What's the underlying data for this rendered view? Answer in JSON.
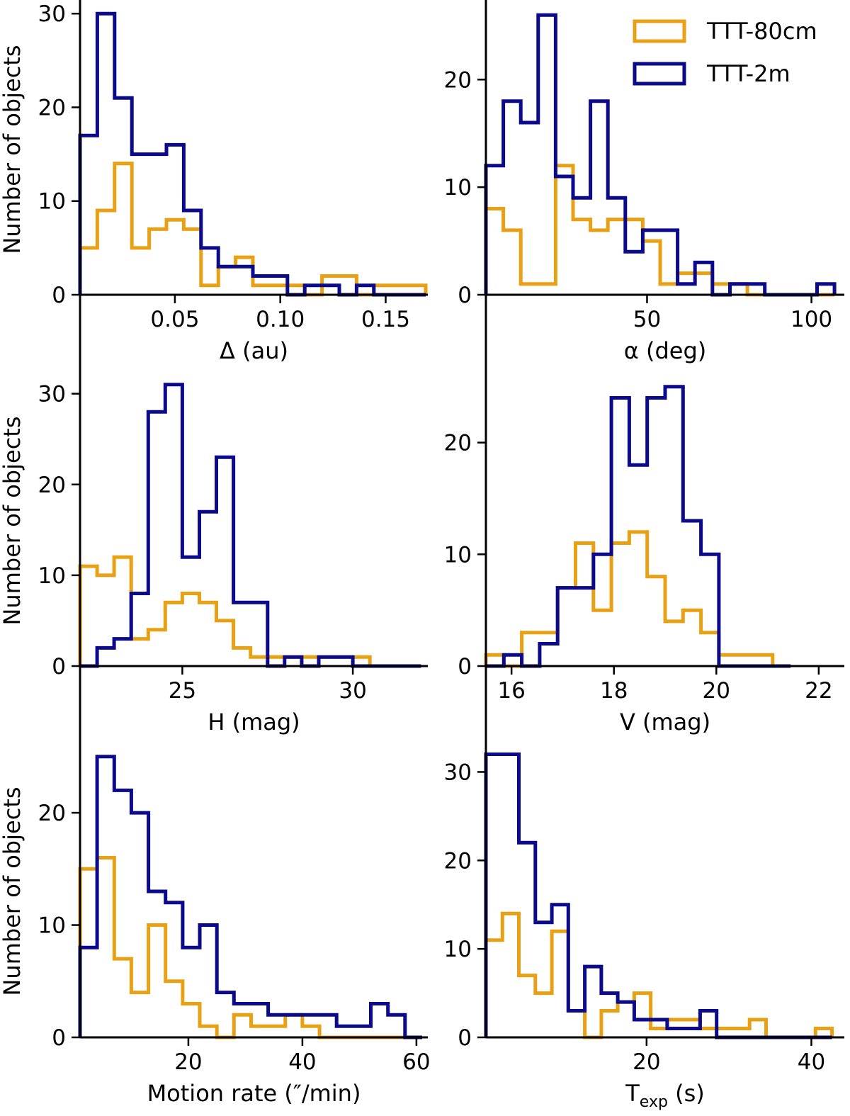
{
  "colors": {
    "ttt80": "#E8A015",
    "ttt2": "#0A0A8A",
    "axis": "#000000"
  },
  "legend": {
    "entries": [
      "TTT-80cm",
      "TTT-2m"
    ]
  },
  "chart_data": [
    {
      "type": "histogram",
      "panel": "delta",
      "xlabel": "Δ (au)",
      "ylabel": "Number of objects",
      "xlim": [
        0.005,
        0.17
      ],
      "ylim": [
        0,
        31
      ],
      "xticks": [
        0.05,
        0.1,
        0.15
      ],
      "xtick_labels": [
        "0.05",
        "0.10",
        "0.15"
      ],
      "yticks": [
        0,
        10,
        20,
        30
      ],
      "ytick_labels": [
        "0",
        "10",
        "20",
        "30"
      ],
      "edges": [
        0.005,
        0.0132,
        0.0214,
        0.0296,
        0.0378,
        0.046,
        0.0542,
        0.0624,
        0.0706,
        0.0788,
        0.087,
        0.0952,
        0.1034,
        0.1116,
        0.1198,
        0.128,
        0.1362,
        0.1444,
        0.1526,
        0.1608,
        0.169
      ],
      "series": [
        {
          "name": "TTT-80cm",
          "values": [
            5,
            9,
            14,
            5,
            7,
            8,
            7,
            1,
            3,
            4,
            1,
            1,
            1,
            0,
            2,
            2,
            0,
            1,
            1,
            1
          ]
        },
        {
          "name": "TTT-2m",
          "values": [
            17,
            30,
            21,
            15,
            15,
            16,
            9,
            5,
            3,
            3,
            2,
            2,
            0,
            1,
            1,
            0,
            1,
            0,
            0,
            0
          ]
        }
      ]
    },
    {
      "type": "histogram",
      "panel": "alpha",
      "xlabel": "α (deg)",
      "ylabel": "",
      "xlim": [
        1,
        110
      ],
      "ylim": [
        0,
        27
      ],
      "xticks": [
        50,
        100
      ],
      "xtick_labels": [
        "50",
        "100"
      ],
      "yticks": [
        0,
        10,
        20
      ],
      "ytick_labels": [
        "0",
        "10",
        "20"
      ],
      "edges": [
        1,
        6.3,
        11.6,
        16.9,
        22.2,
        27.5,
        32.8,
        38.1,
        43.4,
        48.7,
        54,
        59.3,
        64.6,
        69.9,
        75.2,
        80.5,
        85.8,
        91.1,
        96.4,
        101.7,
        107
      ],
      "series": [
        {
          "name": "TTT-80cm",
          "values": [
            8,
            6,
            1,
            1,
            12,
            7,
            6,
            7,
            7,
            5,
            1,
            2,
            2,
            1,
            1,
            0,
            0,
            0,
            0,
            0
          ]
        },
        {
          "name": "TTT-2m",
          "values": [
            12,
            18,
            16,
            26,
            11,
            9,
            18,
            9,
            4,
            6,
            6,
            1,
            3,
            0,
            1,
            1,
            0,
            0,
            0,
            1
          ]
        }
      ]
    },
    {
      "type": "histogram",
      "panel": "H",
      "xlabel": "H (mag)",
      "ylabel": "Number of objects",
      "xlim": [
        22,
        32.2
      ],
      "ylim": [
        0,
        32
      ],
      "xticks": [
        25,
        30
      ],
      "xtick_labels": [
        "25",
        "30"
      ],
      "yticks": [
        0,
        10,
        20,
        30
      ],
      "ytick_labels": [
        "0",
        "10",
        "20",
        "30"
      ],
      "edges": [
        22,
        22.5,
        23,
        23.5,
        24,
        24.5,
        25,
        25.5,
        26,
        26.5,
        27,
        27.5,
        28,
        28.5,
        29,
        29.5,
        30,
        30.5,
        31,
        31.5,
        32
      ],
      "series": [
        {
          "name": "TTT-80cm",
          "values": [
            11,
            10,
            12,
            3,
            4,
            7,
            8,
            7,
            5,
            2,
            1,
            1,
            1,
            1,
            1,
            1,
            1,
            0,
            0,
            0
          ]
        },
        {
          "name": "TTT-2m",
          "values": [
            0,
            2,
            3,
            8,
            28,
            31,
            12,
            17,
            23,
            7,
            7,
            0,
            1,
            0,
            1,
            1,
            0,
            0,
            0,
            0
          ]
        }
      ]
    },
    {
      "type": "histogram",
      "panel": "V",
      "xlabel": "V  (mag)",
      "ylabel": "",
      "xlim": [
        15.5,
        22.5
      ],
      "ylim": [
        0,
        26
      ],
      "xticks": [
        16,
        18,
        20,
        22
      ],
      "xtick_labels": [
        "16",
        "18",
        "20",
        "22"
      ],
      "yticks": [
        0,
        10,
        20
      ],
      "ytick_labels": [
        "0",
        "10",
        "20"
      ],
      "edges": [
        15.5,
        15.85,
        16.2,
        16.55,
        16.9,
        17.25,
        17.6,
        17.95,
        18.3,
        18.65,
        19.0,
        19.35,
        19.7,
        20.05,
        20.4,
        20.75,
        21.1,
        21.45
      ],
      "series": [
        {
          "name": "TTT-80cm",
          "values": [
            1,
            0,
            3,
            3,
            7,
            11,
            5,
            11,
            12,
            8,
            4,
            5,
            3,
            1,
            1,
            1,
            0
          ]
        },
        {
          "name": "TTT-2m",
          "values": [
            0,
            1,
            0,
            2,
            7,
            7,
            10,
            24,
            18,
            24,
            25,
            13,
            10,
            0,
            0,
            0,
            0
          ]
        }
      ]
    },
    {
      "type": "histogram",
      "panel": "motion",
      "xlabel": "Motion rate (″/min)",
      "ylabel": "Number of objects",
      "xlim": [
        1,
        62
      ],
      "ylim": [
        0,
        26
      ],
      "xticks": [
        20,
        40,
        60
      ],
      "xtick_labels": [
        "20",
        "40",
        "60"
      ],
      "yticks": [
        0,
        10,
        20
      ],
      "ytick_labels": [
        "0",
        "10",
        "20"
      ],
      "edges": [
        1,
        4,
        7,
        10,
        13,
        16,
        19,
        22,
        25,
        28,
        31,
        34,
        37,
        40,
        43,
        46,
        49,
        52,
        55,
        58,
        61
      ],
      "series": [
        {
          "name": "TTT-80cm",
          "values": [
            15,
            16,
            7,
            4,
            10,
            5,
            3,
            1,
            0,
            2,
            1,
            1,
            2,
            1,
            0,
            0,
            0,
            0,
            0,
            0
          ]
        },
        {
          "name": "TTT-2m",
          "values": [
            8,
            25,
            22,
            20,
            13,
            12,
            8,
            10,
            4,
            3,
            3,
            2,
            2,
            2,
            2,
            1,
            1,
            3,
            2,
            0
          ]
        }
      ]
    },
    {
      "type": "histogram",
      "panel": "texp",
      "xlabel": "T",
      "xlabel_sub": "exp",
      "xlabel_suffix": " (s)",
      "ylabel": "",
      "xlim": [
        0.5,
        44
      ],
      "ylim": [
        0,
        33
      ],
      "xticks": [
        20,
        40
      ],
      "xtick_labels": [
        "20",
        "40"
      ],
      "yticks": [
        0,
        10,
        20,
        30
      ],
      "ytick_labels": [
        "0",
        "10",
        "20",
        "30"
      ],
      "edges": [
        0.5,
        2.5,
        4.5,
        6.5,
        8.5,
        10.5,
        12.5,
        14.5,
        16.5,
        18.5,
        20.5,
        22.5,
        24.5,
        26.5,
        28.5,
        30.5,
        32.5,
        34.5,
        36.5,
        38.5,
        40.5,
        42.5
      ],
      "series": [
        {
          "name": "TTT-80cm",
          "values": [
            11,
            14,
            7,
            5,
            12,
            3,
            0,
            3,
            4,
            5,
            1,
            2,
            2,
            1,
            1,
            1,
            2,
            0,
            0,
            0,
            1
          ]
        },
        {
          "name": "TTT-2m",
          "values": [
            32,
            32,
            22,
            13,
            15,
            3,
            8,
            5,
            4,
            2,
            2,
            1,
            1,
            3,
            0,
            0,
            0,
            0,
            0,
            0,
            0
          ]
        }
      ]
    }
  ]
}
